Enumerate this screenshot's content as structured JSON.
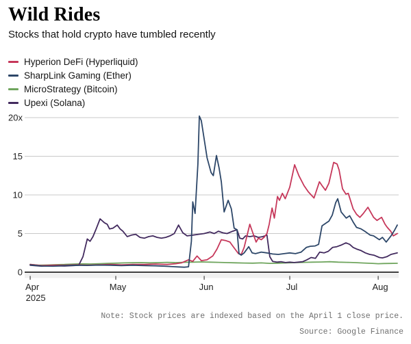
{
  "header": {
    "title": "Wild Rides",
    "subtitle": "Stocks that hold crypto have tumbled recently"
  },
  "legend": {
    "items": [
      {
        "label": "Hyperion DeFi (Hyperliquid)",
        "color": "#c6375a"
      },
      {
        "label": "SharpLink Gaming (Ether)",
        "color": "#2c4668"
      },
      {
        "label": "MicroStrategy (Bitcoin)",
        "color": "#6fa55d"
      },
      {
        "label": "Upexi (Solana)",
        "color": "#422a5e"
      }
    ]
  },
  "chart_data": {
    "type": "line",
    "title": "Wild Rides",
    "subtitle": "Stocks that hold crypto have tumbled recently",
    "x_unit": "days since Apr 1, 2025",
    "xlim": [
      0,
      128.7
    ],
    "ylim": [
      0,
      20.5
    ],
    "grid": "horizontal",
    "legend_position": "top-left",
    "colors": {
      "grid": "#c8c8c8",
      "axis": "#000000",
      "tick_band": "#f0f0f0",
      "tick": "#444444"
    },
    "y_ticks": [
      {
        "value": 0,
        "label": "0"
      },
      {
        "value": 5,
        "label": "5"
      },
      {
        "value": 10,
        "label": "10"
      },
      {
        "value": 15,
        "label": "15"
      },
      {
        "value": 20,
        "label": "20x"
      }
    ],
    "x_ticks": [
      {
        "day": 0,
        "label": "Apr",
        "sublabel": "2025"
      },
      {
        "day": 30,
        "label": "May"
      },
      {
        "day": 61,
        "label": "Jun"
      },
      {
        "day": 91,
        "label": "Jul"
      },
      {
        "day": 122,
        "label": "Aug"
      }
    ],
    "series": [
      {
        "name": "MicroStrategy (Bitcoin)",
        "color": "#6fa55d",
        "points": [
          [
            0,
            1.0
          ],
          [
            3,
            0.9
          ],
          [
            6,
            0.93
          ],
          [
            9,
            0.97
          ],
          [
            12,
            1.0
          ],
          [
            15,
            1.05
          ],
          [
            18,
            1.08
          ],
          [
            21,
            1.06
          ],
          [
            24,
            1.1
          ],
          [
            27,
            1.14
          ],
          [
            30,
            1.17
          ],
          [
            33,
            1.2
          ],
          [
            36,
            1.22
          ],
          [
            39,
            1.24
          ],
          [
            42,
            1.21
          ],
          [
            45,
            1.24
          ],
          [
            48,
            1.27
          ],
          [
            51,
            1.24
          ],
          [
            54,
            1.28
          ],
          [
            57,
            1.3
          ],
          [
            60,
            1.33
          ],
          [
            63,
            1.3
          ],
          [
            66,
            1.27
          ],
          [
            69,
            1.24
          ],
          [
            72,
            1.21
          ],
          [
            75,
            1.19
          ],
          [
            78,
            1.17
          ],
          [
            81,
            1.2
          ],
          [
            84,
            1.14
          ],
          [
            87,
            1.17
          ],
          [
            90,
            1.2
          ],
          [
            93,
            1.24
          ],
          [
            96,
            1.27
          ],
          [
            99,
            1.3
          ],
          [
            102,
            1.32
          ],
          [
            105,
            1.35
          ],
          [
            108,
            1.3
          ],
          [
            111,
            1.27
          ],
          [
            114,
            1.24
          ],
          [
            117,
            1.19
          ],
          [
            120,
            1.14
          ],
          [
            122,
            1.1
          ],
          [
            124,
            1.12
          ],
          [
            126,
            1.13
          ],
          [
            128.7,
            1.15
          ]
        ]
      },
      {
        "name": "Upexi (Solana)",
        "color": "#422a5e",
        "points": [
          [
            0,
            0.9
          ],
          [
            4,
            0.78
          ],
          [
            8,
            0.82
          ],
          [
            12,
            0.8
          ],
          [
            15,
            0.85
          ],
          [
            17,
            0.9
          ],
          [
            18.5,
            2.0
          ],
          [
            20,
            4.3
          ],
          [
            21,
            4.0
          ],
          [
            22,
            4.6
          ],
          [
            23,
            5.5
          ],
          [
            24.5,
            6.9
          ],
          [
            26,
            6.4
          ],
          [
            27,
            6.2
          ],
          [
            27.8,
            5.6
          ],
          [
            29,
            5.7
          ],
          [
            30.5,
            6.1
          ],
          [
            31.5,
            5.6
          ],
          [
            32.5,
            5.3
          ],
          [
            34,
            4.6
          ],
          [
            35.5,
            4.8
          ],
          [
            37,
            4.9
          ],
          [
            38.5,
            4.5
          ],
          [
            40,
            4.4
          ],
          [
            41.5,
            4.6
          ],
          [
            43,
            4.7
          ],
          [
            44.5,
            4.5
          ],
          [
            46,
            4.4
          ],
          [
            47.5,
            4.5
          ],
          [
            49,
            4.7
          ],
          [
            50.5,
            5.0
          ],
          [
            52,
            6.1
          ],
          [
            53.5,
            5.1
          ],
          [
            55,
            4.7
          ],
          [
            57,
            4.8
          ],
          [
            59,
            4.9
          ],
          [
            61,
            5.0
          ],
          [
            63,
            5.2
          ],
          [
            64.5,
            5.0
          ],
          [
            66,
            5.3
          ],
          [
            67.5,
            5.1
          ],
          [
            69,
            5.0
          ],
          [
            71,
            5.3
          ],
          [
            72.5,
            5.5
          ],
          [
            73.5,
            4.4
          ],
          [
            74.5,
            4.3
          ],
          [
            75.5,
            4.7
          ],
          [
            77,
            4.6
          ],
          [
            78.5,
            4.7
          ],
          [
            80,
            4.5
          ],
          [
            81.5,
            4.6
          ],
          [
            83,
            4.8
          ],
          [
            84,
            2.0
          ],
          [
            85,
            1.4
          ],
          [
            86.5,
            1.3
          ],
          [
            88,
            1.35
          ],
          [
            89.5,
            1.25
          ],
          [
            91,
            1.3
          ],
          [
            92.5,
            1.25
          ],
          [
            94,
            1.3
          ],
          [
            95.5,
            1.35
          ],
          [
            97,
            1.6
          ],
          [
            98.5,
            1.9
          ],
          [
            100,
            1.8
          ],
          [
            101.5,
            2.6
          ],
          [
            103,
            2.5
          ],
          [
            104.5,
            2.7
          ],
          [
            106,
            3.2
          ],
          [
            107.5,
            3.3
          ],
          [
            109,
            3.5
          ],
          [
            110.7,
            3.8
          ],
          [
            112,
            3.6
          ],
          [
            113.2,
            3.2
          ],
          [
            114.4,
            3.0
          ],
          [
            116,
            2.8
          ],
          [
            117.5,
            2.5
          ],
          [
            119,
            2.3
          ],
          [
            120.5,
            2.2
          ],
          [
            122.4,
            1.9
          ],
          [
            123.5,
            1.85
          ],
          [
            125,
            2.0
          ],
          [
            126.5,
            2.3
          ],
          [
            128.7,
            2.5
          ]
        ]
      },
      {
        "name": "Hyperion DeFi (Hyperliquid)",
        "color": "#c6375a",
        "points": [
          [
            0,
            1.0
          ],
          [
            4,
            0.85
          ],
          [
            8,
            0.9
          ],
          [
            12,
            0.9
          ],
          [
            16,
            0.95
          ],
          [
            20,
            0.9
          ],
          [
            24,
            0.95
          ],
          [
            28,
            1.0
          ],
          [
            32,
            0.95
          ],
          [
            36,
            1.0
          ],
          [
            40,
            1.0
          ],
          [
            44,
            1.05
          ],
          [
            48,
            1.0
          ],
          [
            51,
            1.1
          ],
          [
            53,
            1.2
          ],
          [
            55.5,
            1.6
          ],
          [
            57,
            1.4
          ],
          [
            58.5,
            2.1
          ],
          [
            60,
            1.5
          ],
          [
            62,
            1.6
          ],
          [
            64,
            2.1
          ],
          [
            65.5,
            3.0
          ],
          [
            67,
            4.2
          ],
          [
            68.5,
            4.1
          ],
          [
            70,
            3.9
          ],
          [
            71,
            3.4
          ],
          [
            73,
            2.4
          ],
          [
            74,
            2.3
          ],
          [
            75,
            3.2
          ],
          [
            77,
            6.2
          ],
          [
            78.5,
            4.6
          ],
          [
            79.2,
            3.9
          ],
          [
            80,
            4.4
          ],
          [
            81,
            4.2
          ],
          [
            82,
            4.5
          ],
          [
            83,
            5.0
          ],
          [
            83.8,
            6.2
          ],
          [
            84.8,
            8.3
          ],
          [
            85.6,
            7.0
          ],
          [
            86.7,
            9.8
          ],
          [
            87.4,
            9.3
          ],
          [
            88.4,
            10.2
          ],
          [
            89.4,
            9.5
          ],
          [
            91,
            11.0
          ],
          [
            92.7,
            13.9
          ],
          [
            94.2,
            12.5
          ],
          [
            96,
            11.2
          ],
          [
            97.5,
            10.4
          ],
          [
            99.5,
            9.6
          ],
          [
            101.4,
            11.7
          ],
          [
            102.3,
            11.2
          ],
          [
            103.5,
            10.6
          ],
          [
            104.7,
            11.5
          ],
          [
            106.4,
            14.2
          ],
          [
            107.6,
            14.0
          ],
          [
            108.3,
            13.2
          ],
          [
            109.5,
            10.8
          ],
          [
            110.7,
            10.1
          ],
          [
            111.5,
            10.2
          ],
          [
            113.2,
            8.2
          ],
          [
            114.4,
            7.5
          ],
          [
            115.6,
            7.1
          ],
          [
            116.8,
            7.6
          ],
          [
            118.4,
            8.4
          ],
          [
            120.4,
            7.1
          ],
          [
            121.6,
            6.7
          ],
          [
            123.2,
            7.1
          ],
          [
            124.4,
            6.2
          ],
          [
            125.2,
            5.8
          ],
          [
            126.4,
            5.3
          ],
          [
            127.3,
            4.7
          ],
          [
            128.7,
            5.0
          ]
        ]
      },
      {
        "name": "SharpLink Gaming (Ether)",
        "color": "#2c4668",
        "points": [
          [
            0,
            0.95
          ],
          [
            4,
            0.8
          ],
          [
            8,
            0.78
          ],
          [
            12,
            0.85
          ],
          [
            16,
            0.9
          ],
          [
            20,
            0.88
          ],
          [
            24,
            0.92
          ],
          [
            28,
            0.9
          ],
          [
            32,
            0.85
          ],
          [
            36,
            0.9
          ],
          [
            40,
            0.85
          ],
          [
            44,
            0.82
          ],
          [
            47,
            0.78
          ],
          [
            50,
            0.72
          ],
          [
            52,
            0.68
          ],
          [
            54,
            0.65
          ],
          [
            55.5,
            0.7
          ],
          [
            56.5,
            4.0
          ],
          [
            57,
            9.1
          ],
          [
            57.8,
            7.6
          ],
          [
            58.8,
            14.0
          ],
          [
            59.3,
            20.2
          ],
          [
            60,
            19.6
          ],
          [
            61,
            17.2
          ],
          [
            62,
            14.8
          ],
          [
            63.4,
            12.9
          ],
          [
            64.2,
            12.5
          ],
          [
            65.3,
            15.1
          ],
          [
            66.2,
            13.5
          ],
          [
            67,
            11.7
          ],
          [
            68,
            7.8
          ],
          [
            69.4,
            9.3
          ],
          [
            70.5,
            8.2
          ],
          [
            71.5,
            5.7
          ],
          [
            72.5,
            5.5
          ],
          [
            73.2,
            2.4
          ],
          [
            74,
            2.2
          ],
          [
            75,
            2.5
          ],
          [
            76.6,
            3.3
          ],
          [
            77.8,
            2.5
          ],
          [
            79,
            2.4
          ],
          [
            81,
            2.6
          ],
          [
            83,
            2.5
          ],
          [
            85,
            2.35
          ],
          [
            87,
            2.3
          ],
          [
            89,
            2.4
          ],
          [
            91,
            2.5
          ],
          [
            93,
            2.4
          ],
          [
            95,
            2.6
          ],
          [
            96.8,
            3.2
          ],
          [
            98.2,
            3.35
          ],
          [
            99.9,
            3.4
          ],
          [
            101.1,
            3.6
          ],
          [
            102.3,
            6.0
          ],
          [
            103.5,
            6.3
          ],
          [
            104.7,
            6.6
          ],
          [
            105.9,
            7.4
          ],
          [
            107.1,
            9.0
          ],
          [
            107.8,
            9.5
          ],
          [
            109,
            7.8
          ],
          [
            110.8,
            7.0
          ],
          [
            112,
            7.3
          ],
          [
            113.2,
            6.5
          ],
          [
            114.4,
            5.8
          ],
          [
            116,
            5.6
          ],
          [
            117.3,
            5.3
          ],
          [
            119.2,
            4.8
          ],
          [
            120.4,
            4.7
          ],
          [
            122.4,
            4.2
          ],
          [
            123.5,
            4.5
          ],
          [
            124.8,
            3.9
          ],
          [
            126.5,
            4.7
          ],
          [
            127.7,
            5.4
          ],
          [
            128.7,
            6.1
          ]
        ]
      }
    ]
  },
  "footer": {
    "note": "Note: Stock prices are indexed based on the April 1 close price.",
    "source": "Source: Google Finance"
  }
}
